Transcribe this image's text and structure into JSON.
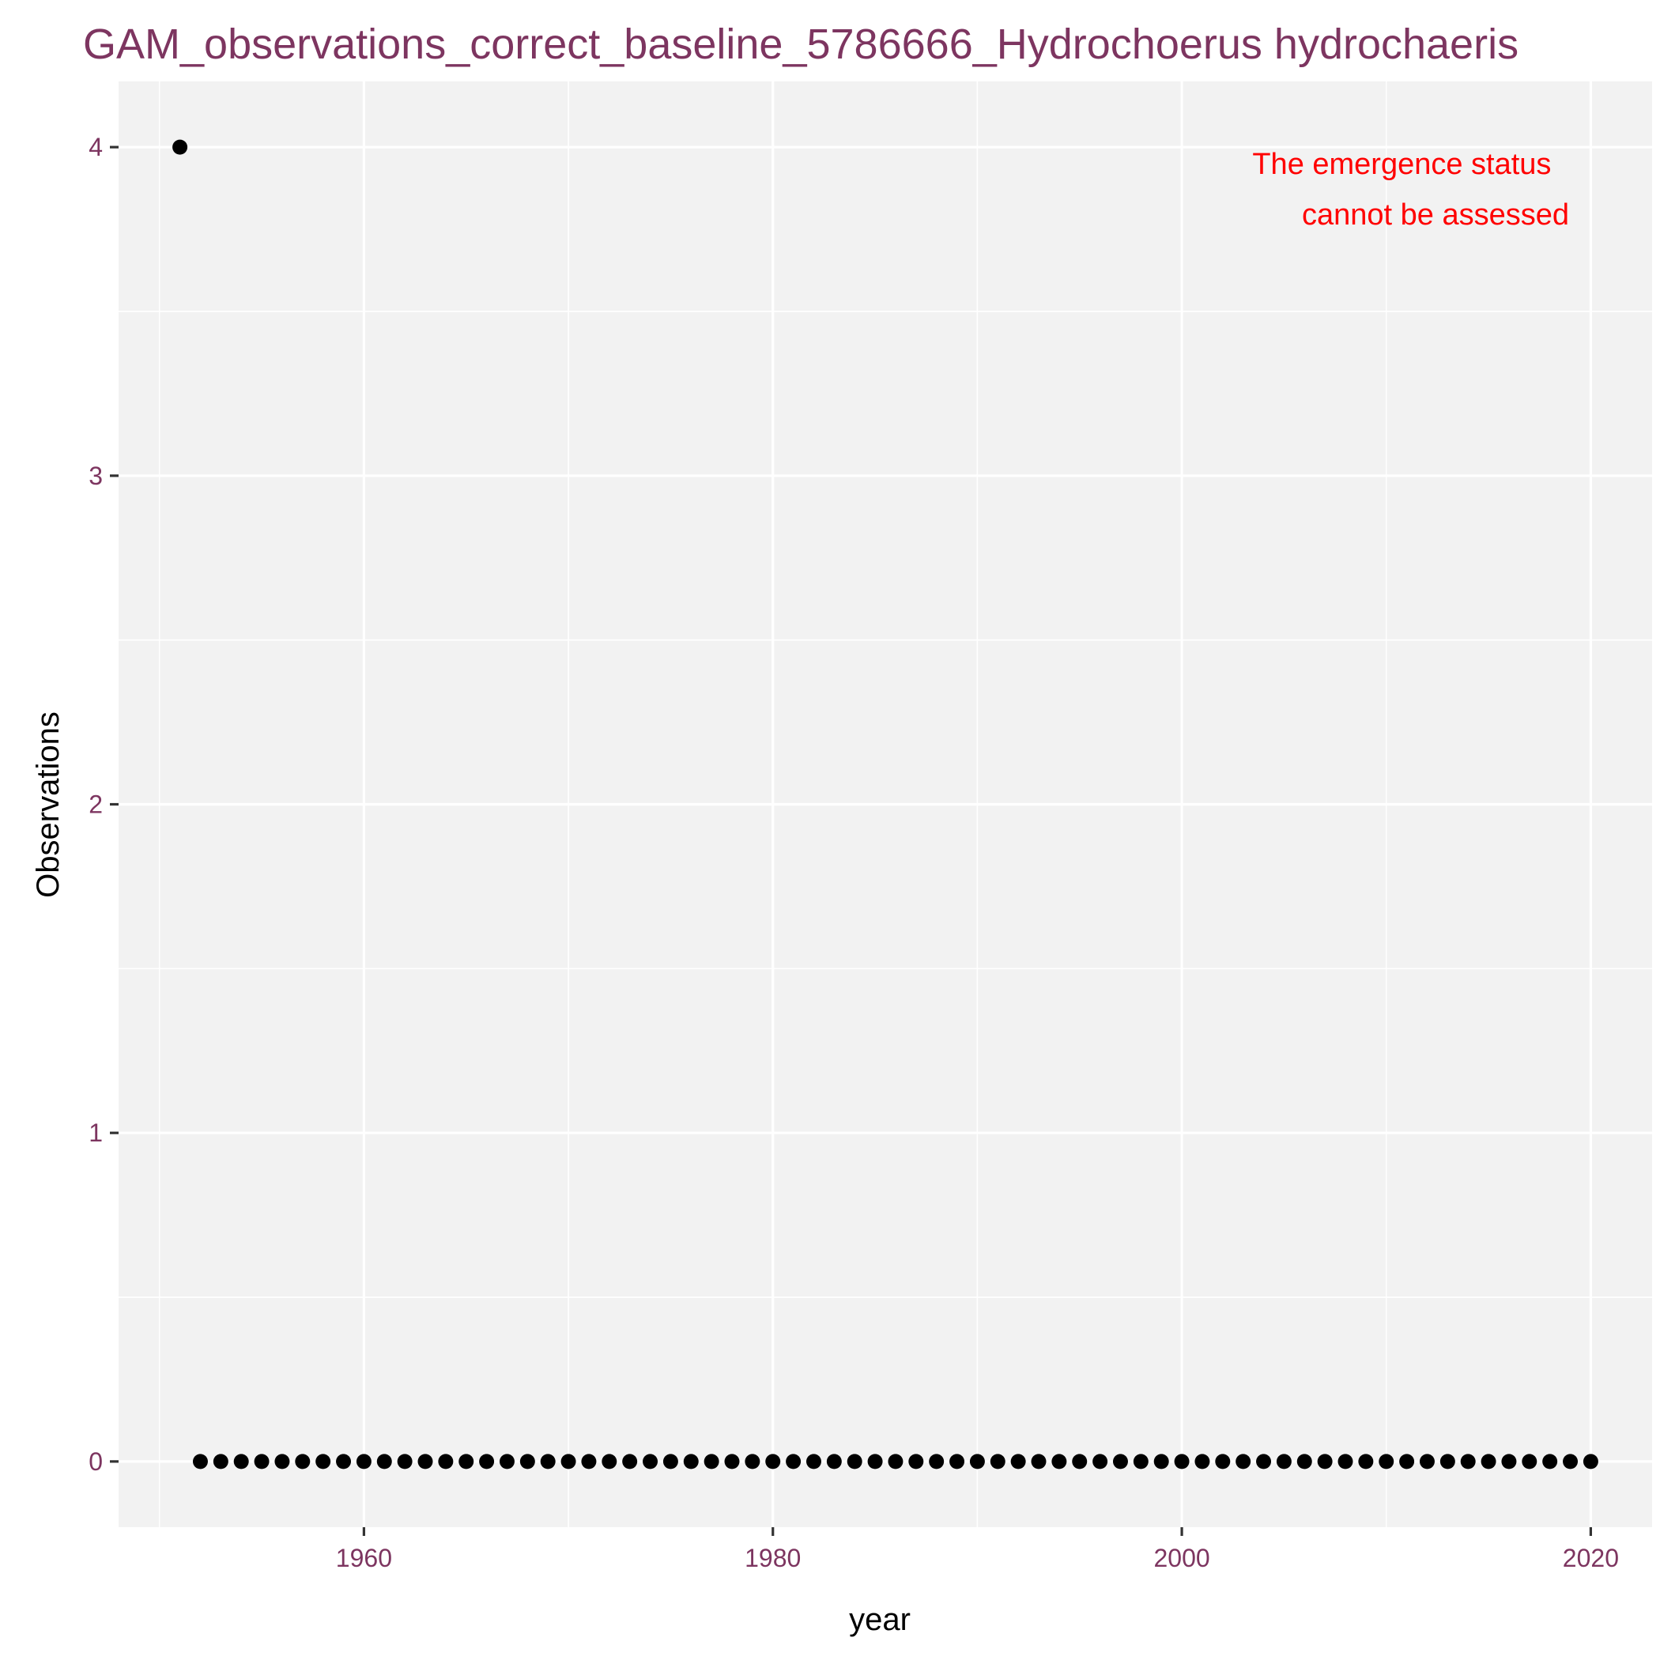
{
  "chart_data": {
    "type": "scatter",
    "title": "GAM_observations_correct_baseline_5786666_Hydrochoerus hydrochaeris",
    "xlabel": "year",
    "ylabel": "Observations",
    "xlim": [
      1948,
      2023
    ],
    "ylim": [
      -0.2,
      4.2
    ],
    "x_ticks": [
      1960,
      1980,
      2000,
      2020
    ],
    "y_ticks": [
      0,
      1,
      2,
      3,
      4
    ],
    "grid": true,
    "legend": "none",
    "annotation": {
      "lines": [
        "The emergence status",
        "cannot be assessed"
      ],
      "position": "top-right",
      "color": "#ff0000"
    },
    "colors": {
      "panel": "#f2f2f2",
      "title": "#7d3560",
      "points": "#000000"
    },
    "series": [
      {
        "x": [
          1951,
          1952,
          1953,
          1954,
          1955,
          1956,
          1957,
          1958,
          1959,
          1960,
          1961,
          1962,
          1963,
          1964,
          1965,
          1966,
          1967,
          1968,
          1969,
          1970,
          1971,
          1972,
          1973,
          1974,
          1975,
          1976,
          1977,
          1978,
          1979,
          1980,
          1981,
          1982,
          1983,
          1984,
          1985,
          1986,
          1987,
          1988,
          1989,
          1990,
          1991,
          1992,
          1993,
          1994,
          1995,
          1996,
          1997,
          1998,
          1999,
          2000,
          2001,
          2002,
          2003,
          2004,
          2005,
          2006,
          2007,
          2008,
          2009,
          2010,
          2011,
          2012,
          2013,
          2014,
          2015,
          2016,
          2017,
          2018,
          2019,
          2020
        ],
        "y": [
          4,
          0,
          0,
          0,
          0,
          0,
          0,
          0,
          0,
          0,
          0,
          0,
          0,
          0,
          0,
          0,
          0,
          0,
          0,
          0,
          0,
          0,
          0,
          0,
          0,
          0,
          0,
          0,
          0,
          0,
          0,
          0,
          0,
          0,
          0,
          0,
          0,
          0,
          0,
          0,
          0,
          0,
          0,
          0,
          0,
          0,
          0,
          0,
          0,
          0,
          0,
          0,
          0,
          0,
          0,
          0,
          0,
          0,
          0,
          0,
          0,
          0,
          0,
          0,
          0,
          0,
          0,
          0,
          0,
          0
        ]
      }
    ]
  }
}
